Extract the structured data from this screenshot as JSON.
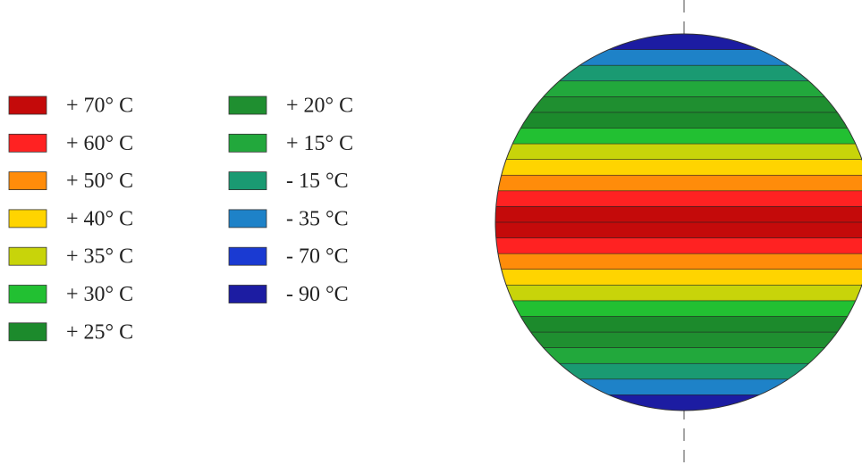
{
  "legend": [
    {
      "label": "+ 70° C",
      "color": "#c40a0a"
    },
    {
      "label": "+ 60° C",
      "color": "#ff2222"
    },
    {
      "label": "+ 50° C",
      "color": "#ff8c0a"
    },
    {
      "label": "+ 40° C",
      "color": "#ffd400"
    },
    {
      "label": "+ 35° C",
      "color": "#c8d40a"
    },
    {
      "label": "+ 30° C",
      "color": "#22c032"
    },
    {
      "label": "+ 25° C",
      "color": "#1c8a2c"
    },
    {
      "label": "+ 20° C",
      "color": "#1f8f30"
    },
    {
      "label": "+ 15° C",
      "color": "#22a83c"
    },
    {
      "label": "- 15 °C",
      "color": "#1a9a72"
    },
    {
      "label": "- 35 °C",
      "color": "#1e82c8"
    },
    {
      "label": "- 70 °C",
      "color": "#1a3ad2"
    },
    {
      "label": "- 90 °C",
      "color": "#1c1ca2"
    }
  ]
}
